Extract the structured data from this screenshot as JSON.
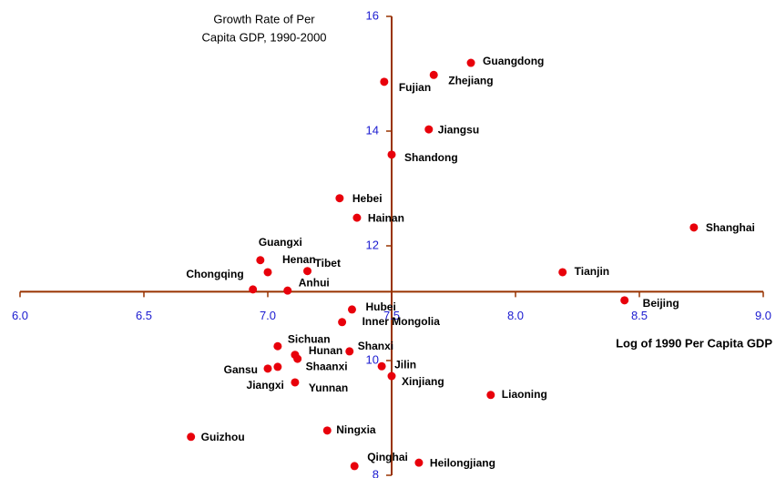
{
  "chart_data": {
    "type": "scatter",
    "title": [
      "Growth Rate of Per",
      "Capita GDP, 1990-2000"
    ],
    "x_label": "Log of 1990 Per Capita GDP",
    "xlim": [
      6,
      9
    ],
    "ylim": [
      8,
      16
    ],
    "xticks": [
      {
        "value": 6,
        "label": "6.0"
      },
      6.5,
      {
        "value": 7,
        "label": "7.0"
      },
      7.5,
      {
        "value": 8,
        "label": "8.0"
      },
      8.5,
      {
        "value": 9,
        "label": "9.0"
      }
    ],
    "yticks": [
      8,
      10,
      12,
      14,
      16
    ],
    "x_axis_crosses_y": 11.2,
    "y_axis_crosses_x": 7.5,
    "axis_color": "#993300",
    "tick_color": "#1a1ad0",
    "series": [
      {
        "color": "#e8000b",
        "labels": [
          "Guangdong",
          "Zhejiang",
          "Fujian",
          "Jiangsu",
          "Shandong",
          "Hebei",
          "Hainan",
          "Shanghai",
          "Guangxi",
          "Henan",
          "Tibet",
          "Tianjin",
          "Chongqing",
          "Anhui",
          "Beijing",
          "Hubei",
          "Inner Mongolia",
          "Sichuan",
          "Shanxi",
          "Hunan",
          "Shaanxi",
          "Jilin",
          "Gansu",
          "Jiangxi",
          "Xinjiang",
          "Yunnan",
          "Liaoning",
          "Ningxia",
          "Guizhou",
          "Heilongjiang",
          "Qinghai"
        ],
        "x": [
          7.82,
          7.67,
          7.47,
          7.65,
          7.5,
          7.29,
          7.36,
          8.72,
          6.97,
          7.0,
          7.16,
          8.19,
          6.94,
          7.08,
          8.44,
          7.34,
          7.3,
          7.04,
          7.33,
          7.11,
          7.12,
          7.46,
          7.0,
          7.04,
          7.5,
          7.11,
          7.9,
          7.24,
          6.69,
          7.61,
          7.35
        ],
        "values": [
          15.19,
          14.98,
          14.86,
          14.03,
          13.59,
          12.83,
          12.49,
          12.32,
          11.75,
          11.54,
          11.56,
          11.54,
          11.24,
          11.22,
          11.05,
          10.89,
          10.67,
          10.25,
          10.16,
          10.1,
          10.03,
          9.9,
          9.86,
          9.89,
          9.73,
          9.62,
          9.4,
          8.78,
          8.67,
          8.22,
          8.16
        ]
      }
    ]
  }
}
